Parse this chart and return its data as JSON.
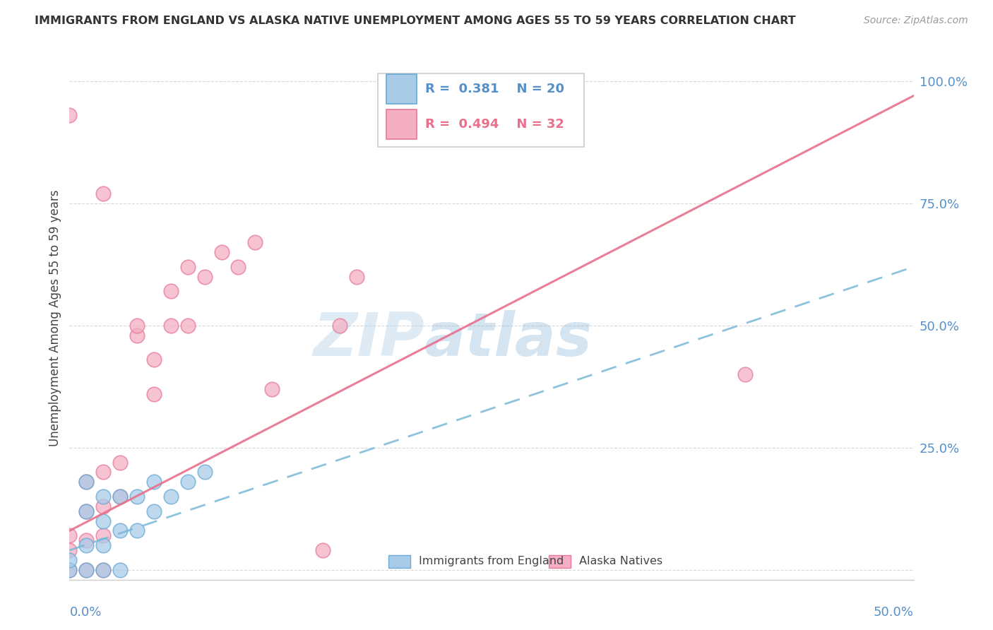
{
  "title": "IMMIGRANTS FROM ENGLAND VS ALASKA NATIVE UNEMPLOYMENT AMONG AGES 55 TO 59 YEARS CORRELATION CHART",
  "source": "Source: ZipAtlas.com",
  "ylabel": "Unemployment Among Ages 55 to 59 years",
  "xlim": [
    0.0,
    0.5
  ],
  "ylim": [
    -0.02,
    1.05
  ],
  "y_ticks": [
    0.0,
    0.25,
    0.5,
    0.75,
    1.0
  ],
  "blue_R": 0.381,
  "blue_N": 20,
  "pink_R": 0.494,
  "pink_N": 32,
  "blue_color": "#a8cce8",
  "pink_color": "#f4afc4",
  "blue_edge_color": "#6aaad4",
  "pink_edge_color": "#e87898",
  "blue_line_color": "#7ab8d8",
  "pink_line_color": "#e8708c",
  "legend_label_blue": "Immigrants from England",
  "legend_label_pink": "Alaska Natives",
  "watermark_zip": "ZIP",
  "watermark_atlas": "atlas",
  "background_color": "#ffffff",
  "grid_color": "#d8d8d8",
  "blue_scatter_x": [
    0.0,
    0.0,
    0.01,
    0.01,
    0.01,
    0.01,
    0.02,
    0.02,
    0.02,
    0.02,
    0.03,
    0.03,
    0.03,
    0.04,
    0.04,
    0.05,
    0.05,
    0.06,
    0.07,
    0.08
  ],
  "blue_scatter_y": [
    0.0,
    0.02,
    0.0,
    0.05,
    0.12,
    0.18,
    0.0,
    0.05,
    0.1,
    0.15,
    0.0,
    0.08,
    0.15,
    0.08,
    0.15,
    0.12,
    0.18,
    0.15,
    0.18,
    0.2
  ],
  "pink_scatter_x": [
    0.0,
    0.0,
    0.0,
    0.0,
    0.01,
    0.01,
    0.01,
    0.01,
    0.02,
    0.02,
    0.02,
    0.02,
    0.03,
    0.03,
    0.04,
    0.04,
    0.05,
    0.05,
    0.06,
    0.06,
    0.07,
    0.07,
    0.08,
    0.09,
    0.1,
    0.11,
    0.15,
    0.16,
    0.17,
    0.4,
    0.02,
    0.12
  ],
  "pink_scatter_y": [
    0.0,
    0.04,
    0.07,
    0.93,
    0.0,
    0.06,
    0.12,
    0.18,
    0.0,
    0.07,
    0.13,
    0.2,
    0.15,
    0.22,
    0.48,
    0.5,
    0.36,
    0.43,
    0.5,
    0.57,
    0.5,
    0.62,
    0.6,
    0.65,
    0.62,
    0.67,
    0.04,
    0.5,
    0.6,
    0.4,
    0.77,
    0.37
  ]
}
